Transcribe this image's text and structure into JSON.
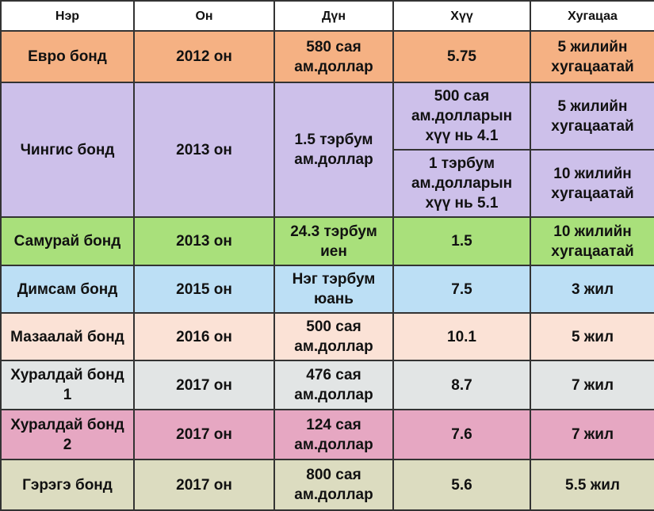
{
  "table": {
    "header": [
      "Нэр",
      "Он",
      "Дүн",
      "Хүү",
      "Хугацаа"
    ],
    "rows": [
      [
        "Евро бонд",
        "2012 он",
        "580 сая ам.доллар",
        "5.75",
        "5 жилийн хугацаатай"
      ],
      [
        "Чингис бонд",
        "2013 он",
        "1.5 тэрбум ам.доллар",
        [
          "500 сая ам.долларын хүү нь 4.1",
          "1 тэрбум ам.долларын хүү нь 5.1"
        ],
        [
          "5 жилийн хугацаатай",
          "10 жилийн хугацаатай"
        ]
      ],
      [
        "Самурай бонд",
        "2013 он",
        "24.3 тэрбум иен",
        "1.5",
        "10 жилийн хугацаатай"
      ],
      [
        "Димсам бонд",
        "2015 он",
        "Нэг тэрбум юань",
        "7.5",
        "3 жил"
      ],
      [
        "Мазаалай бонд",
        "2016 он",
        "500 сая ам.доллар",
        "10.1",
        "5 жил"
      ],
      [
        "Хуралдай бонд 1",
        "2017 он",
        "476 сая ам.доллар",
        "8.7",
        "7 жил"
      ],
      [
        "Хуралдай бонд 2",
        "2017 он",
        "124 сая ам.доллар",
        "7.6",
        "7 жил"
      ],
      [
        "Гэрэгэ бонд",
        "2017 он",
        "800 сая ам.доллар",
        "5.6",
        "5.5 жил"
      ]
    ]
  }
}
